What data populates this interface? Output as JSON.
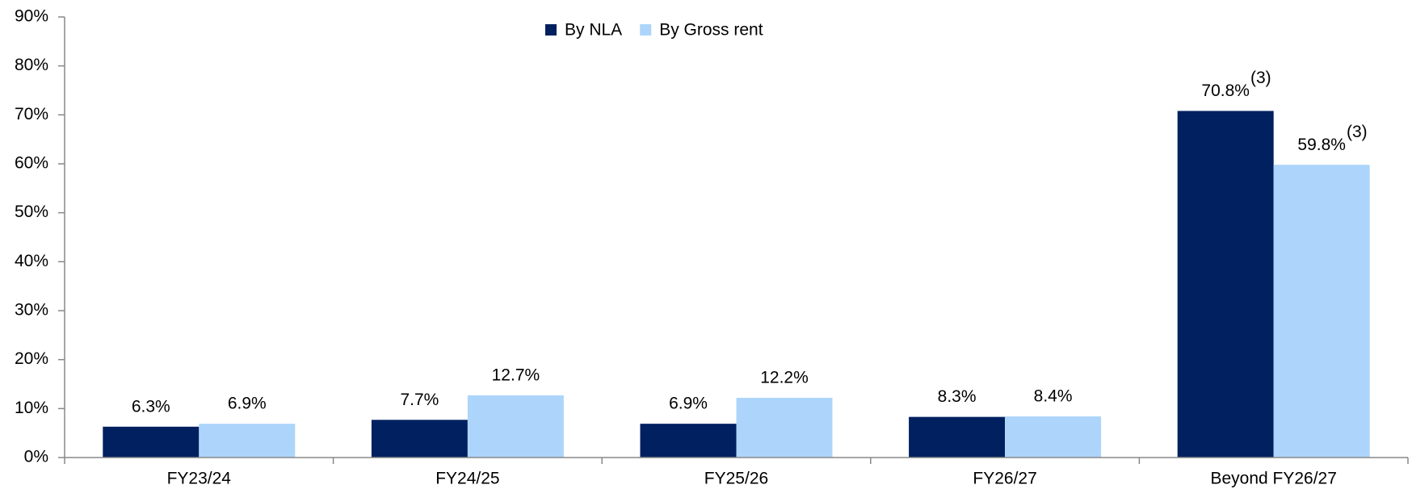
{
  "chart_data": {
    "type": "bar",
    "categories": [
      "FY23/24",
      "FY24/25",
      "FY25/26",
      "FY26/27",
      "Beyond FY26/27"
    ],
    "series": [
      {
        "name": "By NLA",
        "color": "#002060",
        "values": [
          6.3,
          7.7,
          6.9,
          8.3,
          70.8
        ],
        "value_labels": [
          "6.3%",
          "7.7%",
          "6.9%",
          "8.3%",
          "70.8%"
        ],
        "value_superscripts": [
          null,
          null,
          null,
          null,
          "(3)"
        ]
      },
      {
        "name": "By Gross rent",
        "color": "#add5fb",
        "values": [
          6.9,
          12.7,
          12.2,
          8.4,
          59.8
        ],
        "value_labels": [
          "6.9%",
          "12.7%",
          "12.2%",
          "8.4%",
          "59.8%"
        ],
        "value_superscripts": [
          null,
          null,
          null,
          null,
          "(3)"
        ]
      }
    ],
    "ylim": [
      0,
      90
    ],
    "yticks": [
      {
        "value": 0,
        "label": "0%"
      },
      {
        "value": 10,
        "label": "10%"
      },
      {
        "value": 20,
        "label": "20%"
      },
      {
        "value": 30,
        "label": "30%"
      },
      {
        "value": 40,
        "label": "40%"
      },
      {
        "value": 50,
        "label": "50%"
      },
      {
        "value": 60,
        "label": "60%"
      },
      {
        "value": 70,
        "label": "70%"
      },
      {
        "value": 80,
        "label": "80%"
      },
      {
        "value": 90,
        "label": "90%"
      }
    ],
    "legend": "top"
  }
}
